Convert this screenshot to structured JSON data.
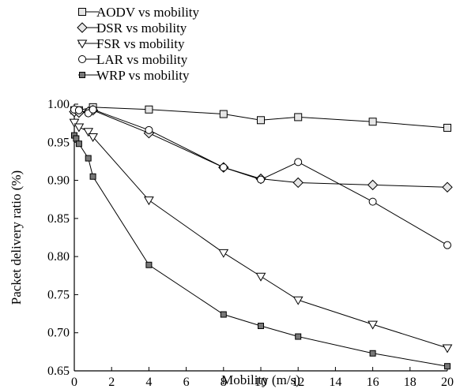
{
  "chart_data": {
    "type": "line",
    "xlabel": "Mobility (m/s)",
    "ylabel": "Packet delivery ratio (%)",
    "xlim": [
      0,
      20
    ],
    "ylim": [
      0.65,
      1.0
    ],
    "xticks": [
      "0",
      "2",
      "4",
      "6",
      "8",
      "10",
      "12",
      "14",
      "16",
      "18",
      "20"
    ],
    "yticks": [
      "0.65",
      "0.70",
      "0.75",
      "0.80",
      "0.85",
      "0.90",
      "0.95",
      "1.00"
    ],
    "grid": false,
    "legend_position": "top-left",
    "series": [
      {
        "name": "AODV vs mobility",
        "marker": "square",
        "marker_fill": "#e6e6e6",
        "points": [
          [
            0,
            0.992
          ],
          [
            0.25,
            0.992
          ],
          [
            1,
            0.996
          ],
          [
            4,
            0.993
          ],
          [
            8,
            0.987
          ],
          [
            10,
            0.979
          ],
          [
            12,
            0.983
          ],
          [
            16,
            0.977
          ],
          [
            20,
            0.969
          ]
        ]
      },
      {
        "name": "DSR vs mobility",
        "marker": "diamond",
        "marker_fill": "#e6e6e6",
        "points": [
          [
            0,
            0.99
          ],
          [
            0.25,
            0.989
          ],
          [
            0.75,
            0.99
          ],
          [
            1,
            0.992
          ],
          [
            4,
            0.962
          ],
          [
            8,
            0.917
          ],
          [
            10,
            0.902
          ],
          [
            12,
            0.897
          ],
          [
            16,
            0.894
          ],
          [
            20,
            0.891
          ]
        ]
      },
      {
        "name": "FSR vs mobility",
        "marker": "triangle-down",
        "marker_fill": "#ffffff",
        "points": [
          [
            0,
            0.976
          ],
          [
            0.25,
            0.97
          ],
          [
            0.75,
            0.964
          ],
          [
            1,
            0.957
          ],
          [
            4,
            0.874
          ],
          [
            8,
            0.805
          ],
          [
            10,
            0.774
          ],
          [
            12,
            0.743
          ],
          [
            16,
            0.711
          ],
          [
            20,
            0.68
          ]
        ]
      },
      {
        "name": "LAR vs mobility",
        "marker": "circle",
        "marker_fill": "#ffffff",
        "points": [
          [
            0,
            0.993
          ],
          [
            0.25,
            0.992
          ],
          [
            0.75,
            0.988
          ],
          [
            1,
            0.993
          ],
          [
            4,
            0.966
          ],
          [
            8,
            0.917
          ],
          [
            10,
            0.901
          ],
          [
            12,
            0.924
          ],
          [
            16,
            0.872
          ],
          [
            20,
            0.815
          ]
        ]
      },
      {
        "name": "WRP vs mobility",
        "marker": "square-filled",
        "marker_fill": "#777777",
        "points": [
          [
            0,
            0.959
          ],
          [
            0.1,
            0.955
          ],
          [
            0.25,
            0.948
          ],
          [
            0.75,
            0.929
          ],
          [
            1,
            0.905
          ],
          [
            4,
            0.789
          ],
          [
            8,
            0.724
          ],
          [
            10,
            0.709
          ],
          [
            12,
            0.695
          ],
          [
            16,
            0.673
          ],
          [
            20,
            0.656
          ]
        ]
      }
    ]
  }
}
